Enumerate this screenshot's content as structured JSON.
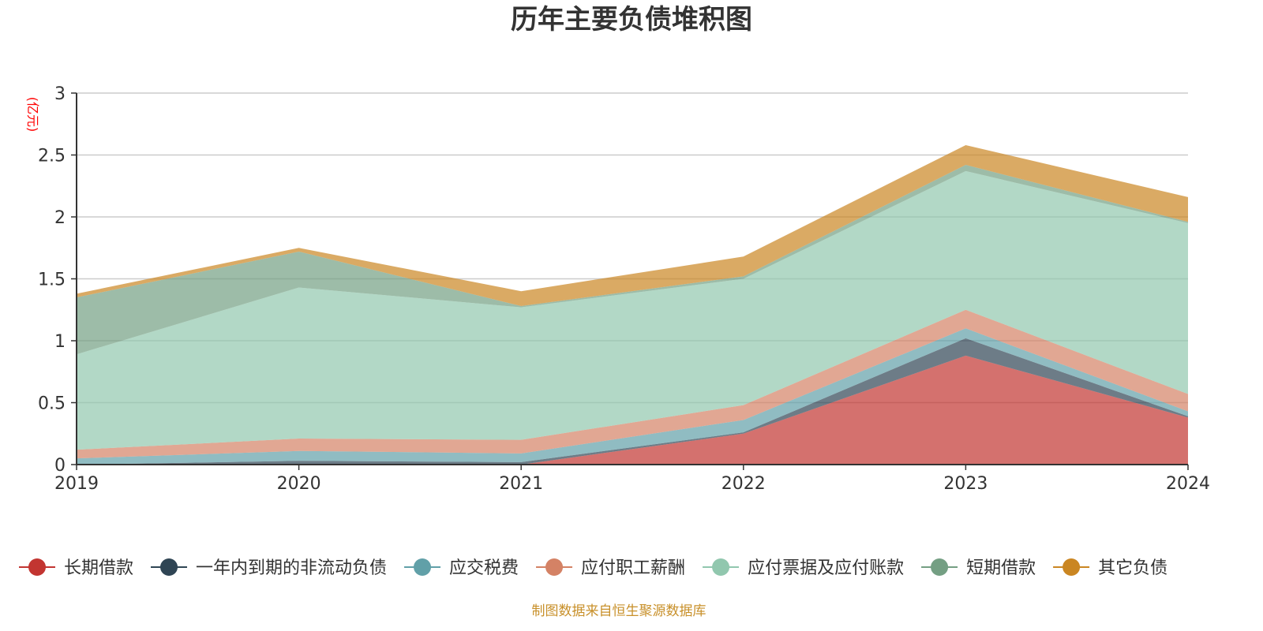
{
  "chart_data": {
    "type": "area",
    "stacked": true,
    "title": "历年主要负债堆积图",
    "ylabel": "(亿元)",
    "ylim": [
      0,
      3
    ],
    "yticks": [
      "0",
      "0.5",
      "1",
      "1.5",
      "2",
      "2.5",
      "3"
    ],
    "grid": true,
    "legend_position": "bottom",
    "x": [
      "2019",
      "2020",
      "2021",
      "2022",
      "2023",
      "2024"
    ],
    "series": [
      {
        "name": "长期借款",
        "color": "#c23531",
        "values": [
          0,
          0,
          0,
          0.25,
          0.88,
          0.38
        ]
      },
      {
        "name": "一年内到期的非流动负债",
        "color": "#2f4554",
        "values": [
          0,
          0.03,
          0.02,
          0.01,
          0.14,
          0.01
        ]
      },
      {
        "name": "应交税费",
        "color": "#61a0a8",
        "values": [
          0.05,
          0.08,
          0.07,
          0.1,
          0.08,
          0.04
        ]
      },
      {
        "name": "应付职工薪酬",
        "color": "#d48265",
        "values": [
          0.07,
          0.1,
          0.11,
          0.12,
          0.15,
          0.14
        ]
      },
      {
        "name": "应付票据及应付账款",
        "color": "#91c7ae",
        "values": [
          0.77,
          1.22,
          1.07,
          1.02,
          1.12,
          1.38
        ]
      },
      {
        "name": "短期借款",
        "color": "#749f83",
        "values": [
          0.46,
          0.29,
          0.01,
          0.02,
          0.05,
          0.01
        ]
      },
      {
        "name": "其它负债",
        "color": "#ca8622",
        "values": [
          0.03,
          0.03,
          0.12,
          0.16,
          0.16,
          0.2
        ]
      }
    ]
  },
  "footer": {
    "source": "制图数据来自恒生聚源数据库"
  }
}
